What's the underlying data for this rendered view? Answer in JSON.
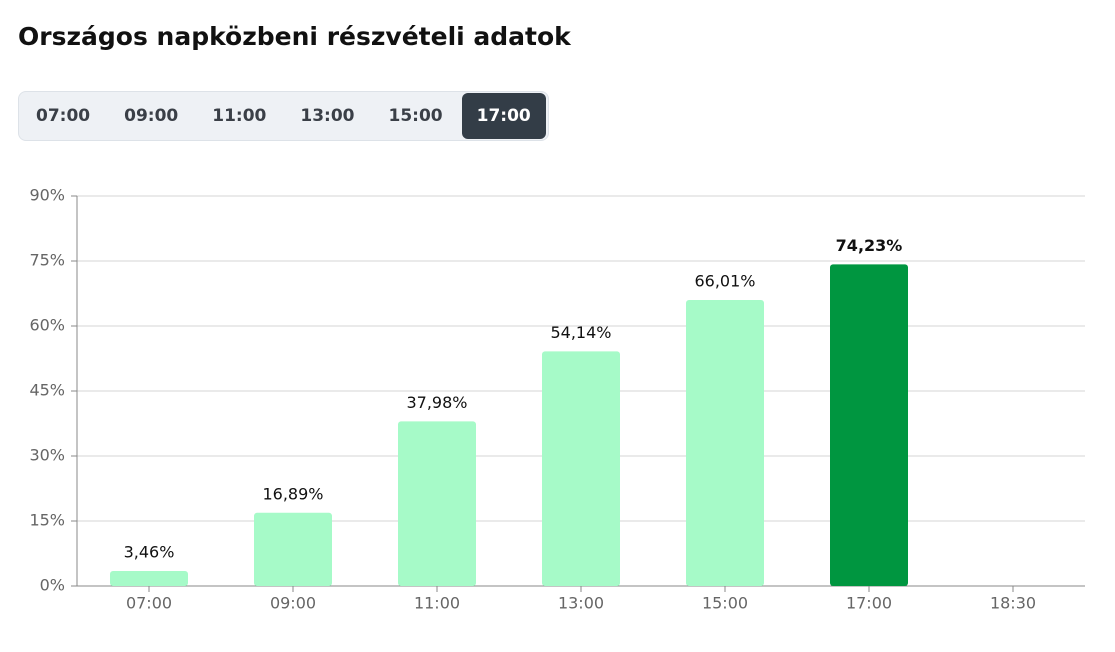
{
  "title": "Országos napközbeni részvételi adatok",
  "tabs": [
    {
      "label": "07:00",
      "active": false
    },
    {
      "label": "09:00",
      "active": false
    },
    {
      "label": "11:00",
      "active": false
    },
    {
      "label": "13:00",
      "active": false
    },
    {
      "label": "15:00",
      "active": false
    },
    {
      "label": "17:00",
      "active": true
    }
  ],
  "chart_data": {
    "type": "bar",
    "categories": [
      "07:00",
      "09:00",
      "11:00",
      "13:00",
      "15:00",
      "17:00",
      "18:30"
    ],
    "values": [
      3.46,
      16.89,
      37.98,
      54.14,
      66.01,
      74.23,
      null
    ],
    "value_labels": [
      "3,46%",
      "16,89%",
      "37,98%",
      "54,14%",
      "66,01%",
      "74,23%",
      null
    ],
    "color": "#a6fac8",
    "highlight_color": "#009640",
    "highlight_index": 5,
    "ylim": [
      0,
      90
    ],
    "yticks": [
      {
        "value": 0,
        "label": "0%"
      },
      {
        "value": 15,
        "label": "15%"
      },
      {
        "value": 30,
        "label": "30%"
      },
      {
        "value": 45,
        "label": "45%"
      },
      {
        "value": 60,
        "label": "60%"
      },
      {
        "value": 75,
        "label": "75%"
      },
      {
        "value": 90,
        "label": "90%"
      }
    ],
    "grid": true
  }
}
